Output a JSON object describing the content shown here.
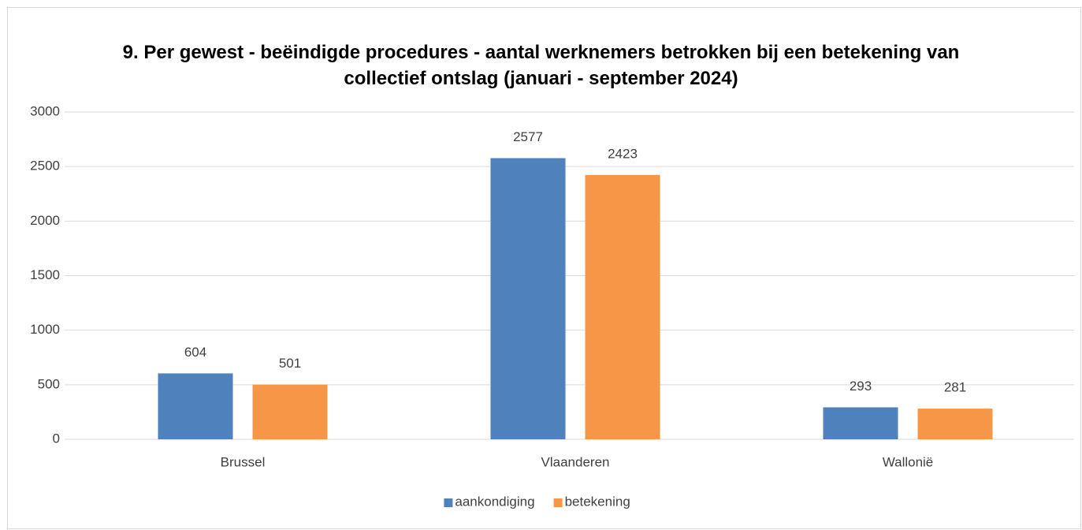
{
  "chart_data": {
    "type": "bar",
    "title": "9. Per gewest - beëindigde procedures - aantal werknemers betrokken bij een betekening van collectief ontslag (januari - september 2024)",
    "categories": [
      "Brussel",
      "Vlaanderen",
      "Wallonië"
    ],
    "series": [
      {
        "name": "aankondiging",
        "color": "#4f81bd",
        "values": [
          604,
          2577,
          293
        ]
      },
      {
        "name": "betekening",
        "color": "#f79646",
        "values": [
          501,
          2423,
          281
        ]
      }
    ],
    "ylim": [
      0,
      3000
    ],
    "yticks": [
      0,
      500,
      1000,
      1500,
      2000,
      2500,
      3000
    ],
    "grid": true,
    "legend": "bottom"
  }
}
